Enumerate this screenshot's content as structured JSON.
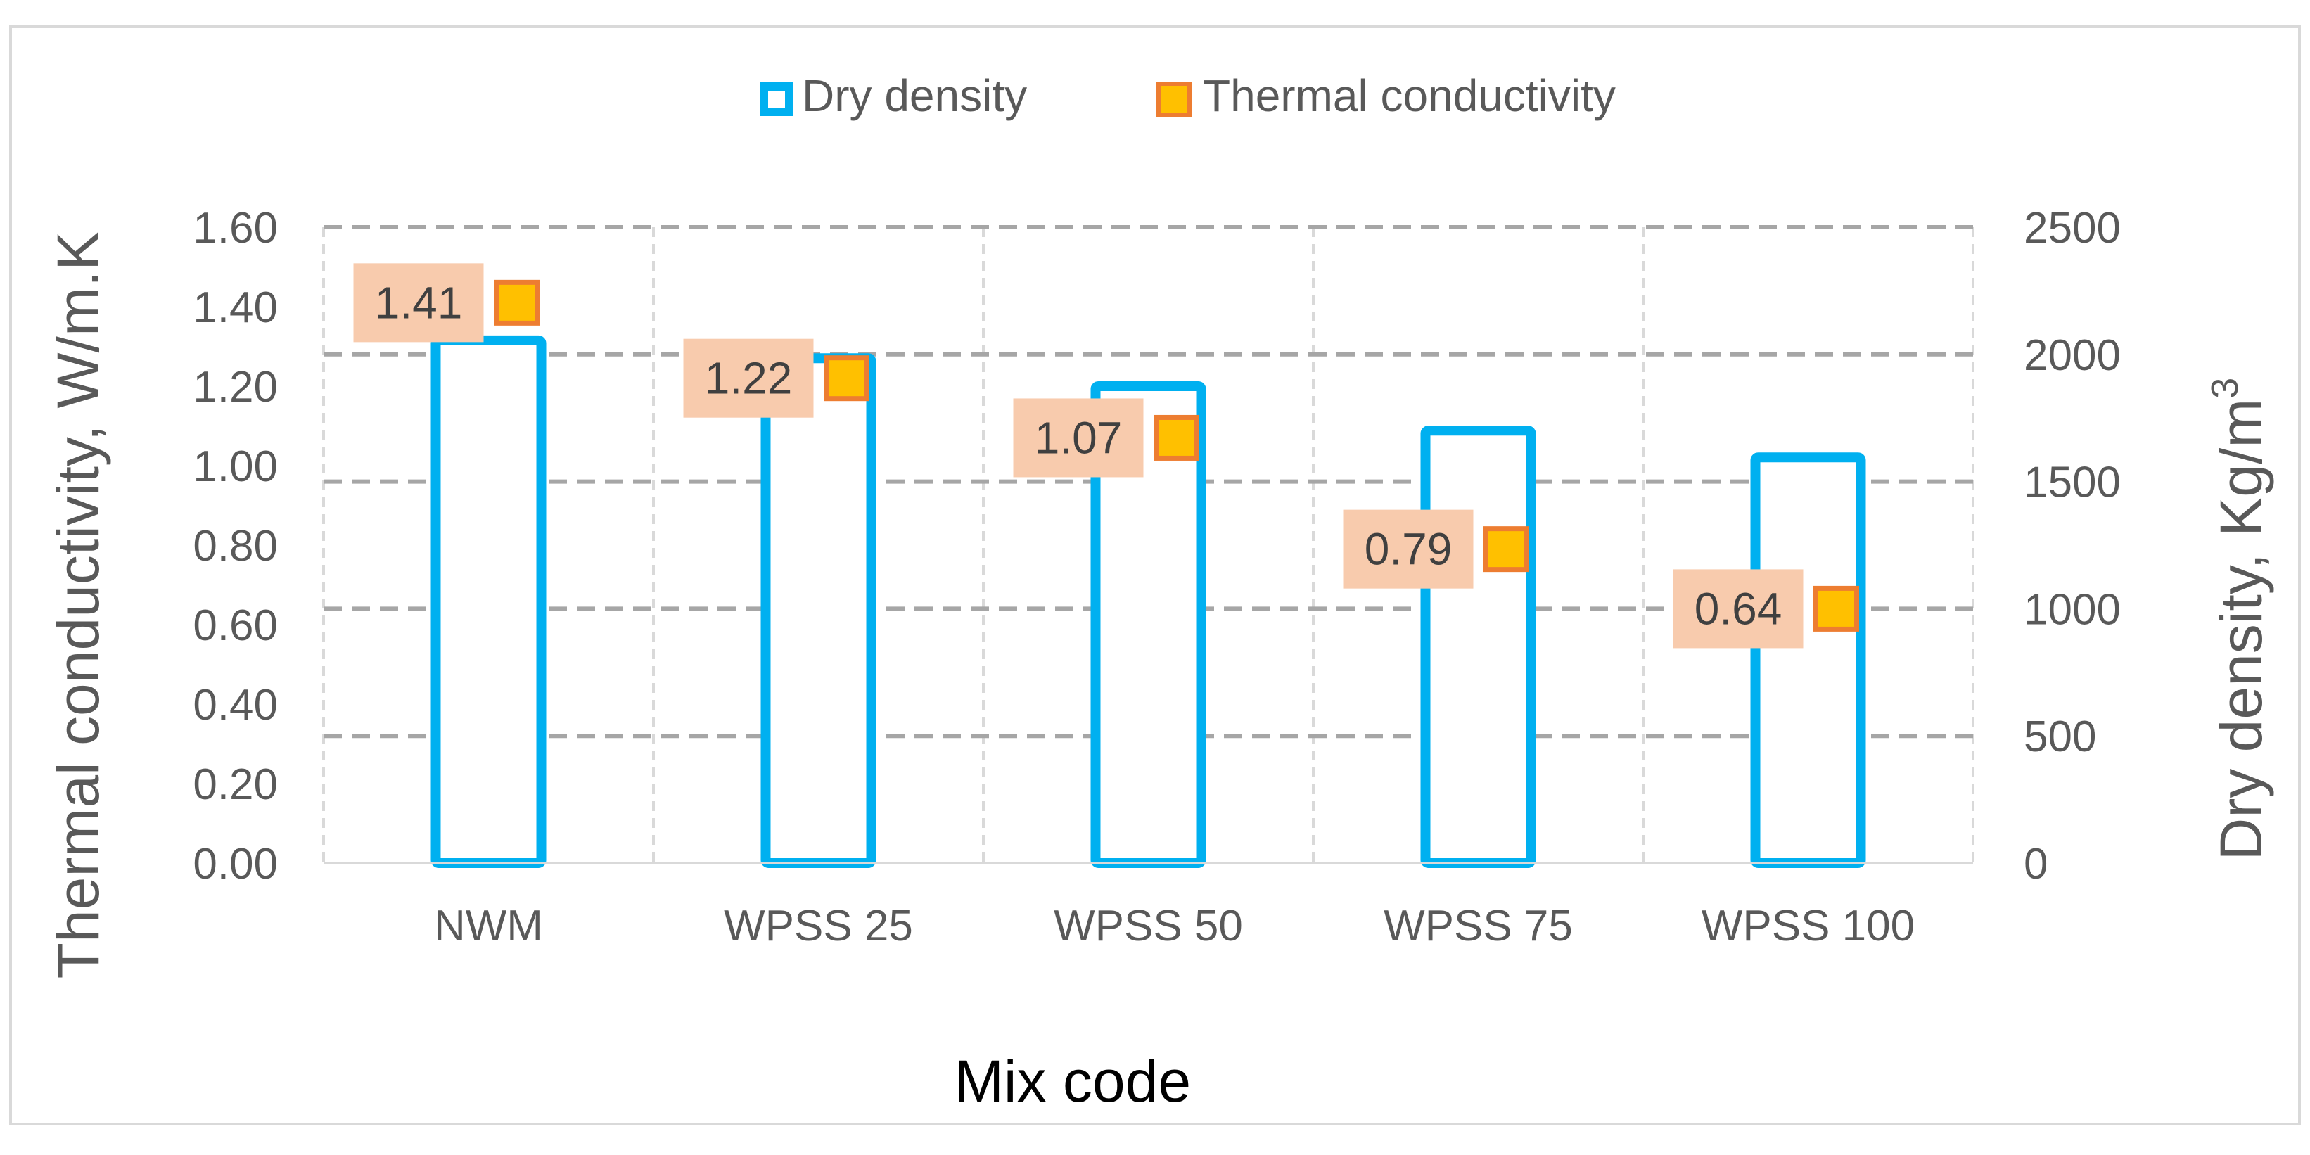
{
  "chart_data": {
    "type": "bar",
    "title": "",
    "categories": [
      "NWM",
      "WPSS 25",
      "WPSS 50",
      "WPSS 75",
      "WPSS 100"
    ],
    "series": [
      {
        "name": "Dry density",
        "kind": "bar",
        "axis": "right",
        "values": [
          2055,
          1985,
          1875,
          1700,
          1595
        ]
      },
      {
        "name": "Thermal conductivity",
        "kind": "marker",
        "axis": "left",
        "values": [
          1.41,
          1.22,
          1.07,
          0.79,
          0.64
        ],
        "labels": [
          "1.41",
          "1.22",
          "1.07",
          "0.79",
          "0.64"
        ]
      }
    ],
    "xlabel": "Mix code",
    "ylabel_left": "Thermal conductivity, W/m.K",
    "ylabel_right_main": "Dry density, Kg/m",
    "ylabel_right_sup": "3",
    "ylim_left": [
      0,
      1.6
    ],
    "yticks_left": [
      "0.00",
      "0.20",
      "0.40",
      "0.60",
      "0.80",
      "1.00",
      "1.20",
      "1.40",
      "1.60"
    ],
    "ylim_right": [
      0,
      2500
    ],
    "yticks_right": [
      "0",
      "500",
      "1000",
      "1500",
      "2000",
      "2500"
    ],
    "legend": {
      "position": "top-center",
      "items": [
        "Dry density",
        "Thermal conductivity"
      ]
    },
    "colors": {
      "bar_stroke": "#00b0f0",
      "marker_fill": "#ffc000",
      "marker_stroke": "#ed7d31",
      "label_bg": "#f8cbad",
      "grid_major": "#a6a6a6",
      "grid_minor": "#d9d9d9",
      "axis_text": "#595959",
      "title_text": "#000000"
    }
  }
}
